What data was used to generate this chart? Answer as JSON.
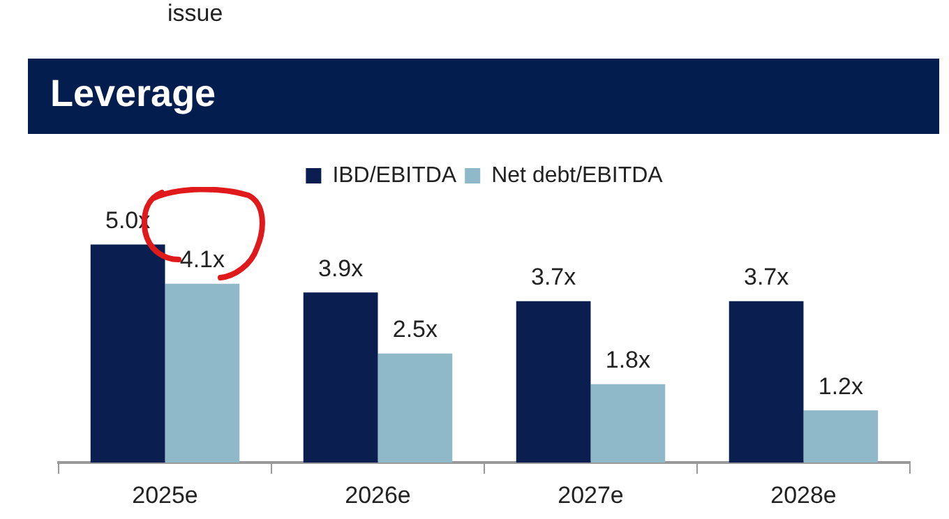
{
  "chart_data": {
    "type": "bar",
    "title": "Leverage",
    "annotations": [
      "issue"
    ],
    "categories": [
      "2025e",
      "2026e",
      "2027e",
      "2028e"
    ],
    "series": [
      {
        "name": "IBD/EBITDA",
        "color": "#0a1f4f",
        "values": [
          5.0,
          3.9,
          3.7,
          3.7
        ],
        "value_labels": [
          "5.0x",
          "3.9x",
          "3.7x",
          "3.7x"
        ]
      },
      {
        "name": "Net debt/EBITDA",
        "color": "#8fb8c9",
        "values": [
          4.1,
          2.5,
          1.8,
          1.2
        ],
        "value_labels": [
          "4.1x",
          "2.5x",
          "1.8x",
          "1.2x"
        ]
      }
    ],
    "legend": "top",
    "grid": false
  }
}
